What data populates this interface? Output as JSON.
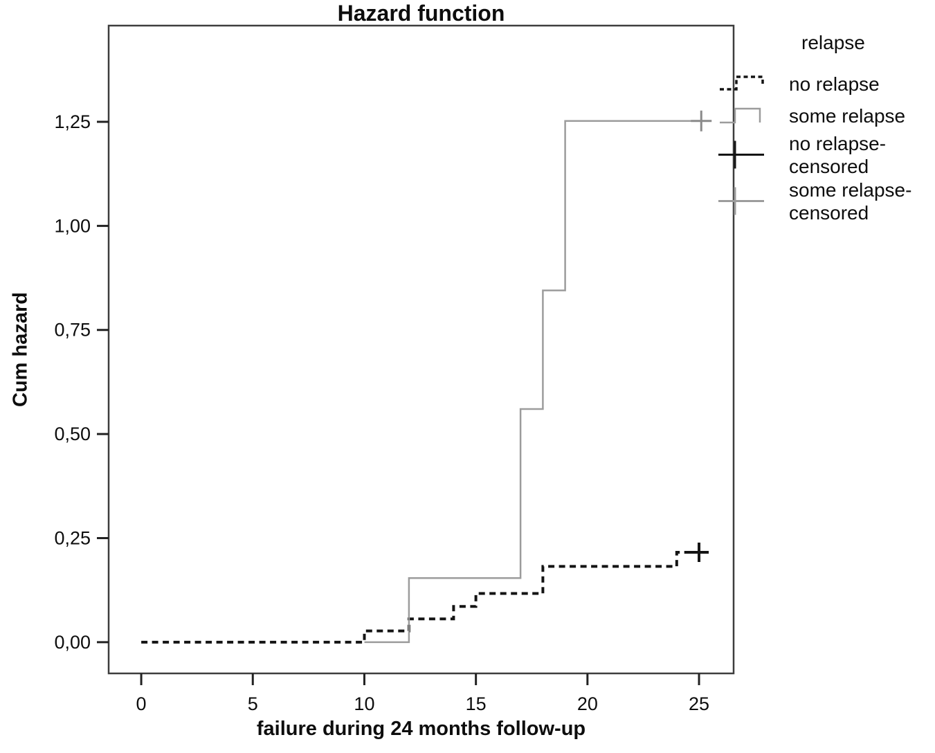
{
  "chart_data": {
    "type": "line",
    "subtype": "step-cumulative-hazard",
    "title": "Hazard function",
    "xlabel": "failure during 24 months follow-up",
    "ylabel": "Cum hazard",
    "xlim": [
      -1.46,
      26.55
    ],
    "ylim": [
      -0.075,
      1.481
    ],
    "grid": "off",
    "x_ticks": {
      "values": [
        0,
        5,
        10,
        15,
        20,
        25
      ],
      "labels": [
        "0",
        "5",
        "10",
        "15",
        "20",
        "25"
      ]
    },
    "y_ticks": {
      "values": [
        0,
        0.25,
        0.5,
        0.75,
        1.0,
        1.25
      ],
      "labels": [
        "0,00",
        "0,25",
        "0,50",
        "0,75",
        "1,00",
        "1,25"
      ]
    },
    "series": [
      {
        "name": "no relapse",
        "color": "#141414",
        "line": "dashed",
        "start": [
          0,
          0
        ],
        "steps": [
          [
            10,
            0.027
          ],
          [
            12,
            0.056
          ],
          [
            14,
            0.086
          ],
          [
            15,
            0.117
          ],
          [
            18,
            0.182
          ],
          [
            24,
            0.216
          ]
        ],
        "end_x": 25,
        "censor_points": [
          [
            25,
            0.216
          ]
        ]
      },
      {
        "name": "some relapse",
        "color": "#9c9c9c",
        "line": "solid",
        "start": [
          10,
          0
        ],
        "steps": [
          [
            12,
            0.154
          ],
          [
            17,
            0.56
          ],
          [
            18,
            0.845
          ],
          [
            19,
            1.252
          ]
        ],
        "end_x": 25.1,
        "censor_points": [
          [
            25.1,
            1.252
          ]
        ]
      }
    ],
    "legend": {
      "title": "relapse",
      "position": "outside-top-right",
      "entries": [
        {
          "label": "no relapse",
          "lines": [
            "no relapse"
          ],
          "marker": "step-dashed",
          "color": "#141414"
        },
        {
          "label": "some relapse",
          "lines": [
            "some relapse"
          ],
          "marker": "step-solid",
          "color": "#9c9c9c"
        },
        {
          "label": "no relapse-censored",
          "lines": [
            "no relapse-",
            "censored"
          ],
          "marker": "plus-line",
          "color": "#141414"
        },
        {
          "label": "some relapse-censored",
          "lines": [
            "some relapse-",
            "censored"
          ],
          "marker": "plus-line",
          "color": "#9c9c9c"
        }
      ]
    }
  }
}
